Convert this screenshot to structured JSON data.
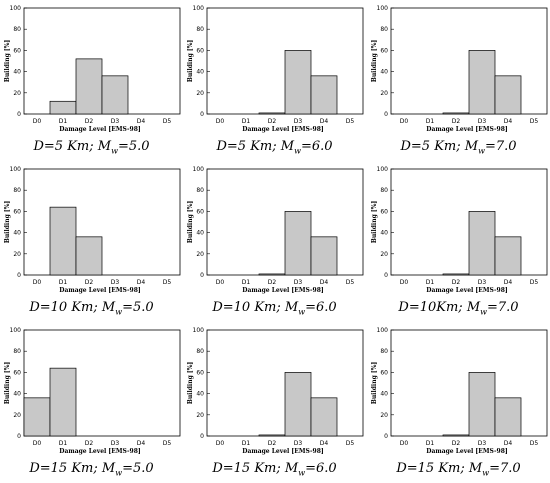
{
  "chart_data": [
    {
      "type": "bar",
      "categories": [
        "D0",
        "D1",
        "D2",
        "D3",
        "D4",
        "D5"
      ],
      "values": [
        0,
        12,
        52,
        36,
        0,
        0
      ],
      "ylim": [
        0,
        100
      ],
      "yticks": [
        0,
        20,
        40,
        60,
        80,
        100
      ],
      "ylabel": "Building [%]",
      "xlabel": "Damage Level [EMS-98]",
      "caption": {
        "d": "D=5 Km; M",
        "sub": "w",
        "m": "=5.0"
      }
    },
    {
      "type": "bar",
      "categories": [
        "D0",
        "D1",
        "D2",
        "D3",
        "D4",
        "D5"
      ],
      "values": [
        0,
        0,
        1,
        60,
        36,
        0
      ],
      "ylim": [
        0,
        100
      ],
      "yticks": [
        0,
        20,
        40,
        60,
        80,
        100
      ],
      "ylabel": "Building [%]",
      "xlabel": "Damage Level [EMS-98]",
      "caption": {
        "d": "D=5 Km; M",
        "sub": "w",
        "m": "=6.0"
      }
    },
    {
      "type": "bar",
      "categories": [
        "D0",
        "D1",
        "D2",
        "D3",
        "D4",
        "D5"
      ],
      "values": [
        0,
        0,
        1,
        60,
        36,
        0
      ],
      "ylim": [
        0,
        100
      ],
      "yticks": [
        0,
        20,
        40,
        60,
        80,
        100
      ],
      "ylabel": "Building [%]",
      "xlabel": "Damage Level [EMS-98]",
      "caption": {
        "d": "D=5 Km; M",
        "sub": "w",
        "m": "=7.0"
      }
    },
    {
      "type": "bar",
      "categories": [
        "D0",
        "D1",
        "D2",
        "D3",
        "D4",
        "D5"
      ],
      "values": [
        0,
        64,
        36,
        0,
        0,
        0
      ],
      "ylim": [
        0,
        100
      ],
      "yticks": [
        0,
        20,
        40,
        60,
        80,
        100
      ],
      "ylabel": "Building [%]",
      "xlabel": "Damage Level [EMS-98]",
      "caption": {
        "d": "D=10 Km; M",
        "sub": "w",
        "m": "=5.0"
      }
    },
    {
      "type": "bar",
      "categories": [
        "D0",
        "D1",
        "D2",
        "D3",
        "D4",
        "D5"
      ],
      "values": [
        0,
        0,
        1,
        60,
        36,
        0
      ],
      "ylim": [
        0,
        100
      ],
      "yticks": [
        0,
        20,
        40,
        60,
        80,
        100
      ],
      "ylabel": "Building [%]",
      "xlabel": "Damage Level [EMS-98]",
      "caption": {
        "d": "D=10 Km; M",
        "sub": "w",
        "m": "=6.0"
      }
    },
    {
      "type": "bar",
      "categories": [
        "D0",
        "D1",
        "D2",
        "D3",
        "D4",
        "D5"
      ],
      "values": [
        0,
        0,
        1,
        60,
        36,
        0
      ],
      "ylim": [
        0,
        100
      ],
      "yticks": [
        0,
        20,
        40,
        60,
        80,
        100
      ],
      "ylabel": "Building [%]",
      "xlabel": "Damage Level [EMS-98]",
      "caption": {
        "d": "D=10Km; M",
        "sub": "w",
        "m": "=7.0"
      }
    },
    {
      "type": "bar",
      "categories": [
        "D0",
        "D1",
        "D2",
        "D3",
        "D4",
        "D5"
      ],
      "values": [
        36,
        64,
        0,
        0,
        0,
        0
      ],
      "ylim": [
        0,
        100
      ],
      "yticks": [
        0,
        20,
        40,
        60,
        80,
        100
      ],
      "ylabel": "Building [%]",
      "xlabel": "Damage Level [EMS-98]",
      "caption": {
        "d": "D=15 Km; M",
        "sub": "w",
        "m": "=5.0"
      }
    },
    {
      "type": "bar",
      "categories": [
        "D0",
        "D1",
        "D2",
        "D3",
        "D4",
        "D5"
      ],
      "values": [
        0,
        0,
        1,
        60,
        36,
        0
      ],
      "ylim": [
        0,
        100
      ],
      "yticks": [
        0,
        20,
        40,
        60,
        80,
        100
      ],
      "ylabel": "Building [%]",
      "xlabel": "Damage Level [EMS-98]",
      "caption": {
        "d": "D=15 Km; M",
        "sub": "w",
        "m": "=6.0"
      }
    },
    {
      "type": "bar",
      "categories": [
        "D0",
        "D1",
        "D2",
        "D3",
        "D4",
        "D5"
      ],
      "values": [
        0,
        0,
        1,
        60,
        36,
        0
      ],
      "ylim": [
        0,
        100
      ],
      "yticks": [
        0,
        20,
        40,
        60,
        80,
        100
      ],
      "ylabel": "Building [%]",
      "xlabel": "Damage Level [EMS-98]",
      "caption": {
        "d": "D=15 Km; M",
        "sub": "w",
        "m": "=7.0"
      }
    }
  ],
  "colors": {
    "bar_fill": "#c8c8c8",
    "bar_stroke": "#000000",
    "axis": "#000000"
  }
}
